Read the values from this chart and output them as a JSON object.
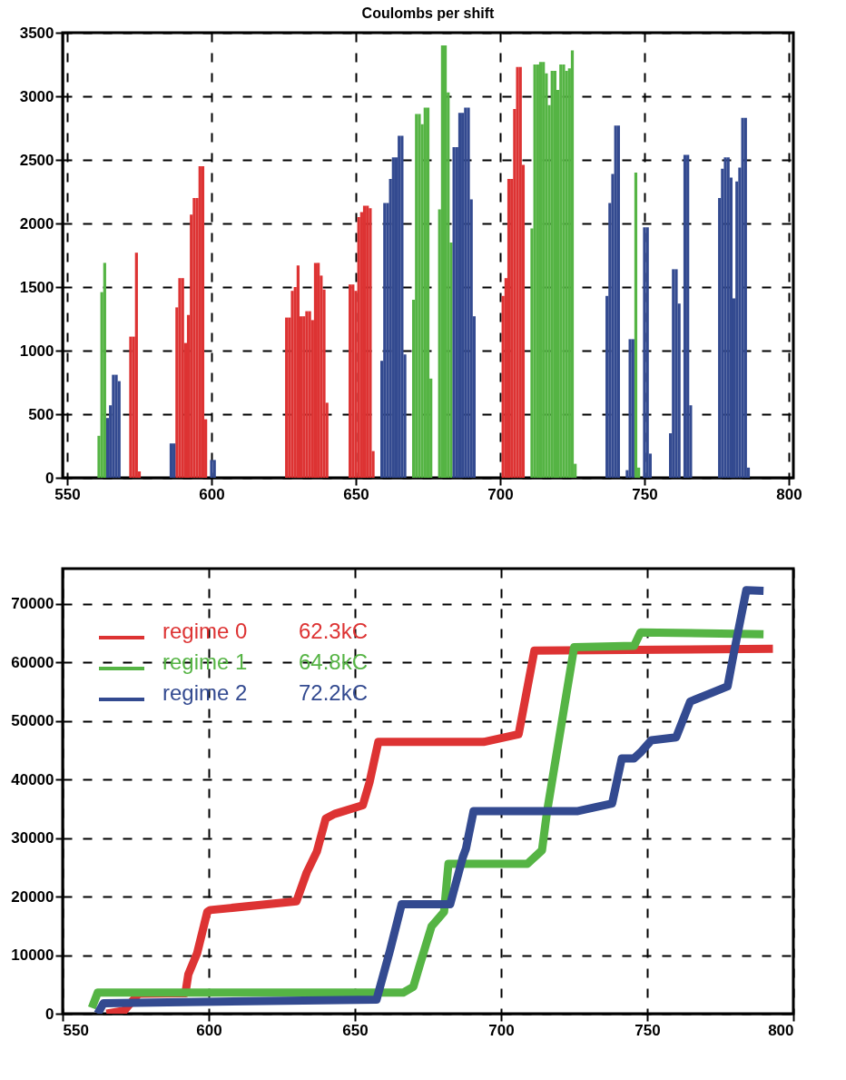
{
  "chart_data": [
    {
      "type": "bar",
      "title": "Coulombs per shift",
      "xlim": [
        550,
        800
      ],
      "xticks": [
        550,
        600,
        650,
        700,
        750,
        800
      ],
      "ylim": [
        0,
        3500
      ],
      "yticks": [
        0,
        500,
        1000,
        1500,
        2000,
        2500,
        3000,
        3500
      ],
      "grid": true,
      "legend": false,
      "series": [
        {
          "color": "#dd3333",
          "x": [
            572,
            573,
            574,
            575,
            588,
            589,
            590,
            591,
            592,
            593,
            594,
            595,
            596,
            597,
            598,
            626,
            627,
            628,
            629,
            630,
            631,
            632,
            633,
            634,
            635,
            636,
            637,
            638,
            639,
            640,
            648,
            649,
            650,
            651,
            652,
            653,
            654,
            655,
            656,
            701,
            702,
            703,
            704,
            705,
            706,
            707,
            708
          ],
          "values": [
            1110,
            1110,
            1770,
            50,
            1340,
            1570,
            1570,
            1060,
            1280,
            2070,
            2200,
            2200,
            2450,
            2450,
            460,
            1260,
            1260,
            1470,
            1500,
            1670,
            1270,
            1270,
            1310,
            1310,
            1240,
            1690,
            1690,
            1590,
            1480,
            590,
            1520,
            1520,
            1470,
            2050,
            2090,
            2140,
            2140,
            2120,
            210,
            1430,
            1570,
            2350,
            2350,
            2900,
            3230,
            3230,
            2460
          ]
        },
        {
          "color": "#55b444",
          "x": [
            561,
            562,
            563,
            670,
            671,
            672,
            673,
            674,
            675,
            676,
            679,
            680,
            681,
            682,
            683,
            711,
            712,
            713,
            714,
            715,
            716,
            717,
            718,
            719,
            720,
            721,
            722,
            723,
            724,
            725,
            726,
            747,
            748
          ],
          "values": [
            330,
            1460,
            1690,
            1400,
            2860,
            2860,
            2780,
            2910,
            2910,
            780,
            2110,
            3400,
            3400,
            3030,
            1850,
            1960,
            3250,
            3250,
            3270,
            3270,
            3180,
            2930,
            3200,
            3200,
            3050,
            3250,
            3250,
            3200,
            3220,
            3360,
            110,
            2400,
            80
          ]
        },
        {
          "color": "#334a90",
          "x": [
            564,
            565,
            566,
            567,
            568,
            586,
            587,
            600,
            601,
            659,
            660,
            661,
            662,
            663,
            664,
            665,
            666,
            667,
            684,
            685,
            686,
            687,
            688,
            689,
            690,
            691,
            737,
            738,
            739,
            740,
            741,
            744,
            745,
            746,
            750,
            751,
            752,
            759,
            760,
            761,
            762,
            764,
            765,
            766,
            776,
            777,
            778,
            779,
            780,
            781,
            782,
            783,
            784,
            785,
            786
          ],
          "values": [
            470,
            570,
            810,
            810,
            760,
            270,
            270,
            140,
            140,
            920,
            2160,
            2160,
            2350,
            2520,
            2520,
            2690,
            2690,
            970,
            2600,
            2600,
            2870,
            2870,
            2910,
            2910,
            2190,
            1270,
            1430,
            2160,
            2390,
            2770,
            2770,
            60,
            1090,
            1090,
            1970,
            1970,
            190,
            350,
            1640,
            1640,
            1370,
            2540,
            2540,
            570,
            2200,
            2430,
            2520,
            2520,
            2360,
            1410,
            2330,
            2440,
            2830,
            2830,
            80
          ]
        }
      ]
    },
    {
      "type": "line",
      "xlim": [
        550,
        800
      ],
      "xticks": [
        550,
        600,
        650,
        700,
        750,
        800
      ],
      "ylim": [
        0,
        76000
      ],
      "yticks": [
        0,
        10000,
        20000,
        30000,
        40000,
        50000,
        60000,
        70000
      ],
      "grid": true,
      "legend": "top left",
      "line_style": "solid",
      "annotations": [
        "62.3kC",
        "64.8kC",
        "72.2kC"
      ],
      "series": [
        {
          "name": "regime 0",
          "color": "#dd3333",
          "x": [
            565,
            571,
            576,
            592,
            593,
            596,
            599.5,
            600.5,
            630,
            633.5,
            637,
            640,
            643,
            652.7,
            655,
            658,
            694,
            706,
            711.4,
            793
          ],
          "values": [
            0,
            500,
            3400,
            3500,
            6700,
            10300,
            17400,
            17700,
            19200,
            24100,
            27700,
            33300,
            34100,
            35600,
            39500,
            46400,
            46400,
            47700,
            62000,
            62300
          ]
        },
        {
          "name": "regime 1",
          "color": "#55b444",
          "x": [
            560,
            562,
            666.5,
            670,
            672,
            676.2,
            680.5,
            682,
            709,
            714,
            715.7,
            725,
            745.5,
            747.7,
            789.8
          ],
          "values": [
            1000,
            3600,
            3600,
            4600,
            8000,
            14900,
            17400,
            25600,
            25600,
            27900,
            34400,
            62600,
            62800,
            65100,
            64800
          ]
        },
        {
          "name": "regime 2",
          "color": "#334a90",
          "x": [
            562,
            564,
            657.4,
            662,
            666,
            682.6,
            686.9,
            688,
            690.6,
            726.3,
            738,
            741.3,
            745.5,
            747.7,
            751.4,
            759.9,
            764.7,
            777.5,
            779.6,
            783.9,
            789.8
          ],
          "values": [
            0,
            1800,
            2400,
            10800,
            18700,
            18700,
            26700,
            28200,
            34600,
            34600,
            35900,
            43600,
            43600,
            44600,
            46700,
            47200,
            53300,
            55900,
            61500,
            72300,
            72200
          ]
        }
      ]
    }
  ]
}
